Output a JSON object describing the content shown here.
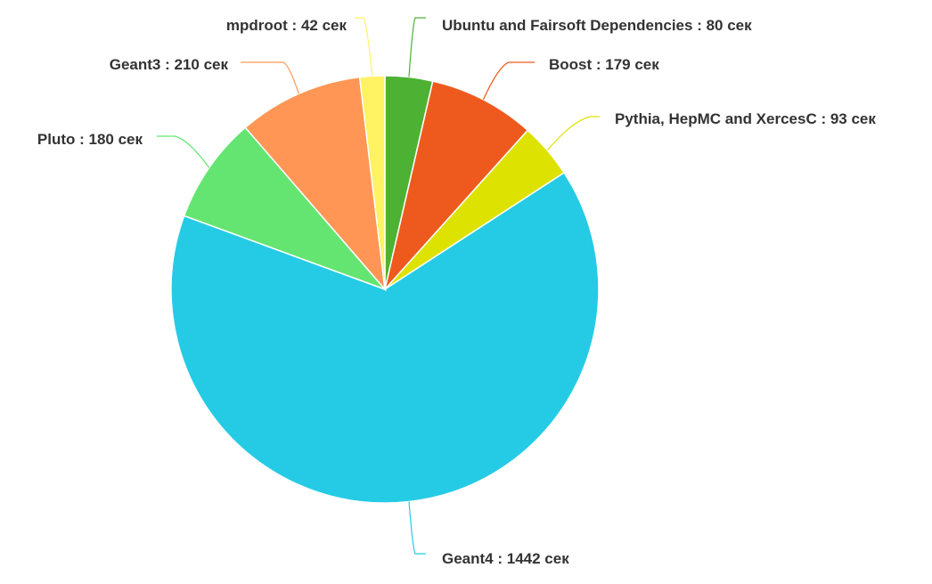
{
  "chart_data": {
    "type": "pie",
    "unit": "сек",
    "slices": [
      {
        "name": "Ubuntu and Fairsoft Dependencies",
        "value": 80,
        "color": "#4db234",
        "label": "Ubuntu and Fairsoft Dependencies : 80 сек"
      },
      {
        "name": "Boost",
        "value": 179,
        "color": "#ee5a1e",
        "label": "Boost : 179 сек"
      },
      {
        "name": "Pythia, HepMC and XercesC",
        "value": 93,
        "color": "#dde200",
        "label": "Pythia, HepMC and XercesC : 93 сек"
      },
      {
        "name": "Geant4",
        "value": 1442,
        "color": "#25cbe5",
        "label": "Geant4 : 1442 сек"
      },
      {
        "name": "Pluto",
        "value": 180,
        "color": "#64e572",
        "label": "Pluto : 180 сек"
      },
      {
        "name": "Geant3",
        "value": 210,
        "color": "#ff9655",
        "label": "Geant3 : 210 сек"
      },
      {
        "name": "mpdroot",
        "value": 42,
        "color": "#fff263",
        "label": "mpdroot : 42 сек"
      }
    ]
  }
}
